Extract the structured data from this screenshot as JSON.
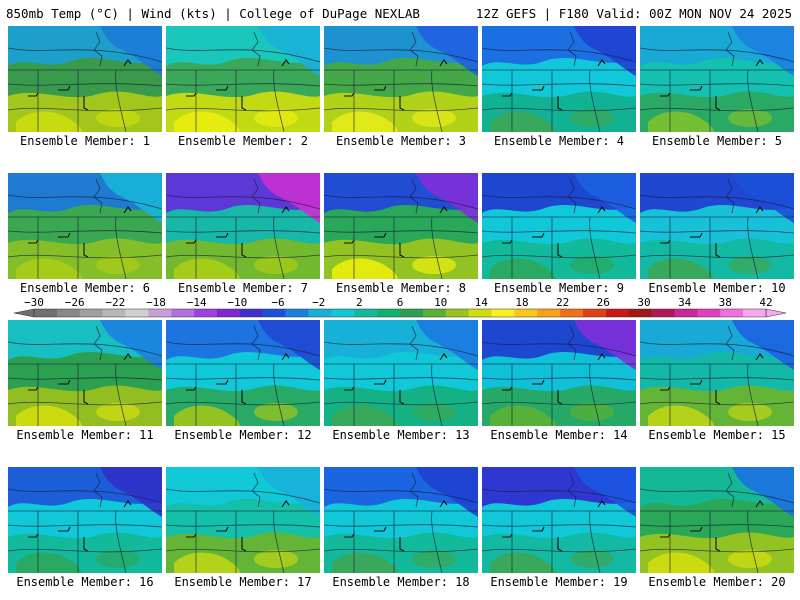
{
  "header": {
    "left": "850mb Temp (°C) | Wind (kts) | College of DuPage NEXLAB",
    "right": "12Z GEFS | F180 Valid: 00Z MON NOV 24 2025"
  },
  "panels": [
    {
      "label": "Ensemble Member: 1",
      "base": "#3a9a4c",
      "north": "#1aa0d0",
      "south": "#a8c818",
      "warm": "#c8dc10",
      "ne": "#1c7ad8"
    },
    {
      "label": "Ensemble Member: 2",
      "base": "#3aa858",
      "north": "#18c8c0",
      "south": "#c8dc10",
      "warm": "#e8ec10",
      "ne": "#18b0d8"
    },
    {
      "label": "Ensemble Member: 3",
      "base": "#44a848",
      "north": "#1c90d8",
      "south": "#b8d418",
      "warm": "#e4ea18",
      "ne": "#2060e0"
    },
    {
      "label": "Ensemble Member: 4",
      "base": "#10c8d8",
      "north": "#1c6ae0",
      "south": "#12b090",
      "warm": "#3aa858",
      "ne": "#2040d0"
    },
    {
      "label": "Ensemble Member: 5",
      "base": "#14c0b0",
      "north": "#18a8d8",
      "south": "#2aa860",
      "warm": "#78c030",
      "ne": "#1c80e0"
    },
    {
      "label": "Ensemble Member: 6",
      "base": "#3aa850",
      "north": "#1c78d8",
      "south": "#88c028",
      "warm": "#a8cc18",
      "ne": "#18b4d8"
    },
    {
      "label": "Ensemble Member: 7",
      "base": "#18b8a8",
      "north": "#6030d8",
      "south": "#78b828",
      "warm": "#a8cc18",
      "ne": "#c830d0"
    },
    {
      "label": "Ensemble Member: 8",
      "base": "#28a858",
      "north": "#2048d8",
      "south": "#98c420",
      "warm": "#e8ec10",
      "ne": "#8030d8"
    },
    {
      "label": "Ensemble Member: 9",
      "base": "#10c8d8",
      "north": "#2040d0",
      "south": "#14b898",
      "warm": "#2aa860",
      "ne": "#1c60e0"
    },
    {
      "label": "Ensemble Member: 10",
      "base": "#18c0d8",
      "north": "#2040d0",
      "south": "#14b8a0",
      "warm": "#3aa858",
      "ne": "#1c50d8"
    },
    {
      "label": "Ensemble Member: 11",
      "base": "#2aa050",
      "north": "#18c0c8",
      "south": "#98c020",
      "warm": "#d0dc10",
      "ne": "#1c80e0"
    },
    {
      "label": "Ensemble Member: 12",
      "base": "#10c8d8",
      "north": "#1c70e0",
      "south": "#2aa860",
      "warm": "#98c420",
      "ne": "#2048d0"
    },
    {
      "label": "Ensemble Member: 13",
      "base": "#10c8d8",
      "north": "#18b0d8",
      "south": "#14b080",
      "warm": "#3aa858",
      "ne": "#1c7ae0"
    },
    {
      "label": "Ensemble Member: 14",
      "base": "#10c0d8",
      "north": "#2040d0",
      "south": "#28a860",
      "warm": "#58b038",
      "ne": "#8030d8"
    },
    {
      "label": "Ensemble Member: 15",
      "base": "#14b8a8",
      "north": "#18a8d8",
      "south": "#68b430",
      "warm": "#b8d418",
      "ne": "#1c60e0"
    },
    {
      "label": "Ensemble Member: 16",
      "base": "#10c8d8",
      "north": "#1c58d8",
      "south": "#14b898",
      "warm": "#2aa860",
      "ne": "#3030c8"
    },
    {
      "label": "Ensemble Member: 17",
      "base": "#14c0a8",
      "north": "#10c8d8",
      "south": "#68b430",
      "warm": "#b8d418",
      "ne": "#18b0d8"
    },
    {
      "label": "Ensemble Member: 18",
      "base": "#10c8d8",
      "north": "#1c60e0",
      "south": "#14b898",
      "warm": "#3aa858",
      "ne": "#2040d0"
    },
    {
      "label": "Ensemble Member: 19",
      "base": "#10c8d8",
      "north": "#3030d0",
      "south": "#14b8a0",
      "warm": "#3aa858",
      "ne": "#1c58e0"
    },
    {
      "label": "Ensemble Member: 20",
      "base": "#2aa858",
      "north": "#14b898",
      "south": "#98c420",
      "warm": "#d0dc10",
      "ne": "#1c70e0"
    }
  ],
  "colorbar": {
    "ticks": [
      "−30",
      "−26",
      "−22",
      "−18",
      "−14",
      "−10",
      "−6",
      "−2",
      "2",
      "6",
      "10",
      "14",
      "18",
      "22",
      "26",
      "30",
      "34",
      "38",
      "42"
    ],
    "colors": [
      "#707070",
      "#888888",
      "#a0a0a0",
      "#b8b8b8",
      "#d0d0d0",
      "#c8a0d8",
      "#b070e0",
      "#a040e0",
      "#8028d0",
      "#4030c8",
      "#1c50d8",
      "#1c80e0",
      "#18b0d8",
      "#10c8d8",
      "#14b8a0",
      "#14b070",
      "#2aa050",
      "#58b038",
      "#98c420",
      "#d0dc10",
      "#f8f020",
      "#f8c818",
      "#f8a018",
      "#f07018",
      "#e04018",
      "#c81818",
      "#a01818",
      "#b01858",
      "#c82898",
      "#e040c0",
      "#f070e0",
      "#f8a8f0"
    ]
  }
}
